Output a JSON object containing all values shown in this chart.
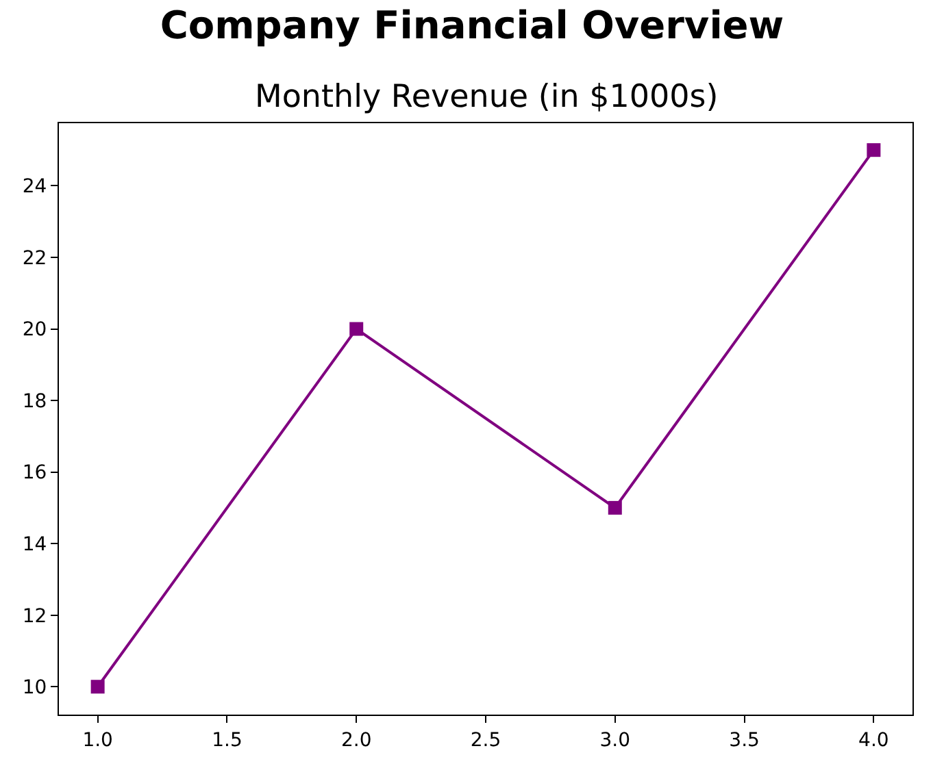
{
  "chart_data": {
    "type": "line",
    "title": "Company Financial Overview",
    "subtitle": "Monthly Revenue (in $1000s)",
    "x": [
      1,
      2,
      3,
      4
    ],
    "series": [
      {
        "color": "#800080",
        "values": [
          10,
          20,
          15,
          25
        ]
      }
    ],
    "xlim": [
      0.85,
      4.15
    ],
    "xticks": [
      {
        "value": 1,
        "label": "1.0"
      },
      {
        "value": 1.5,
        "label": "1.5"
      },
      {
        "value": 2,
        "label": "2.0"
      },
      {
        "value": 2.5,
        "label": "2.5"
      },
      {
        "value": 3,
        "label": "3.0"
      },
      {
        "value": 3.5,
        "label": "3.5"
      },
      {
        "value": 4,
        "label": "4.0"
      }
    ],
    "ylim": [
      9.22,
      25.75
    ],
    "yticks": [
      10,
      12,
      14,
      16,
      18,
      20,
      22,
      24
    ],
    "marker": "square",
    "line_style": "solid",
    "legend": false
  }
}
